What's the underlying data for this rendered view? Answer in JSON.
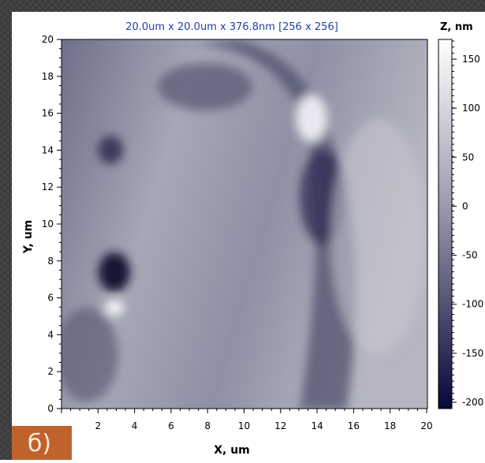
{
  "image_title": "20.0um x 20.0um x 376.8nm [256 x 256]",
  "x_axis": {
    "label": "X, um",
    "ticks": [
      2,
      4,
      6,
      8,
      10,
      12,
      14,
      16,
      18,
      20
    ]
  },
  "y_axis": {
    "label": "Y, um",
    "ticks": [
      0,
      2,
      4,
      6,
      8,
      10,
      12,
      14,
      16,
      18,
      20
    ]
  },
  "colorbar": {
    "label": "Z, nm",
    "ticks": [
      150,
      100,
      50,
      0,
      -50,
      -100,
      -150,
      -200
    ]
  },
  "panel_label": "б)"
}
